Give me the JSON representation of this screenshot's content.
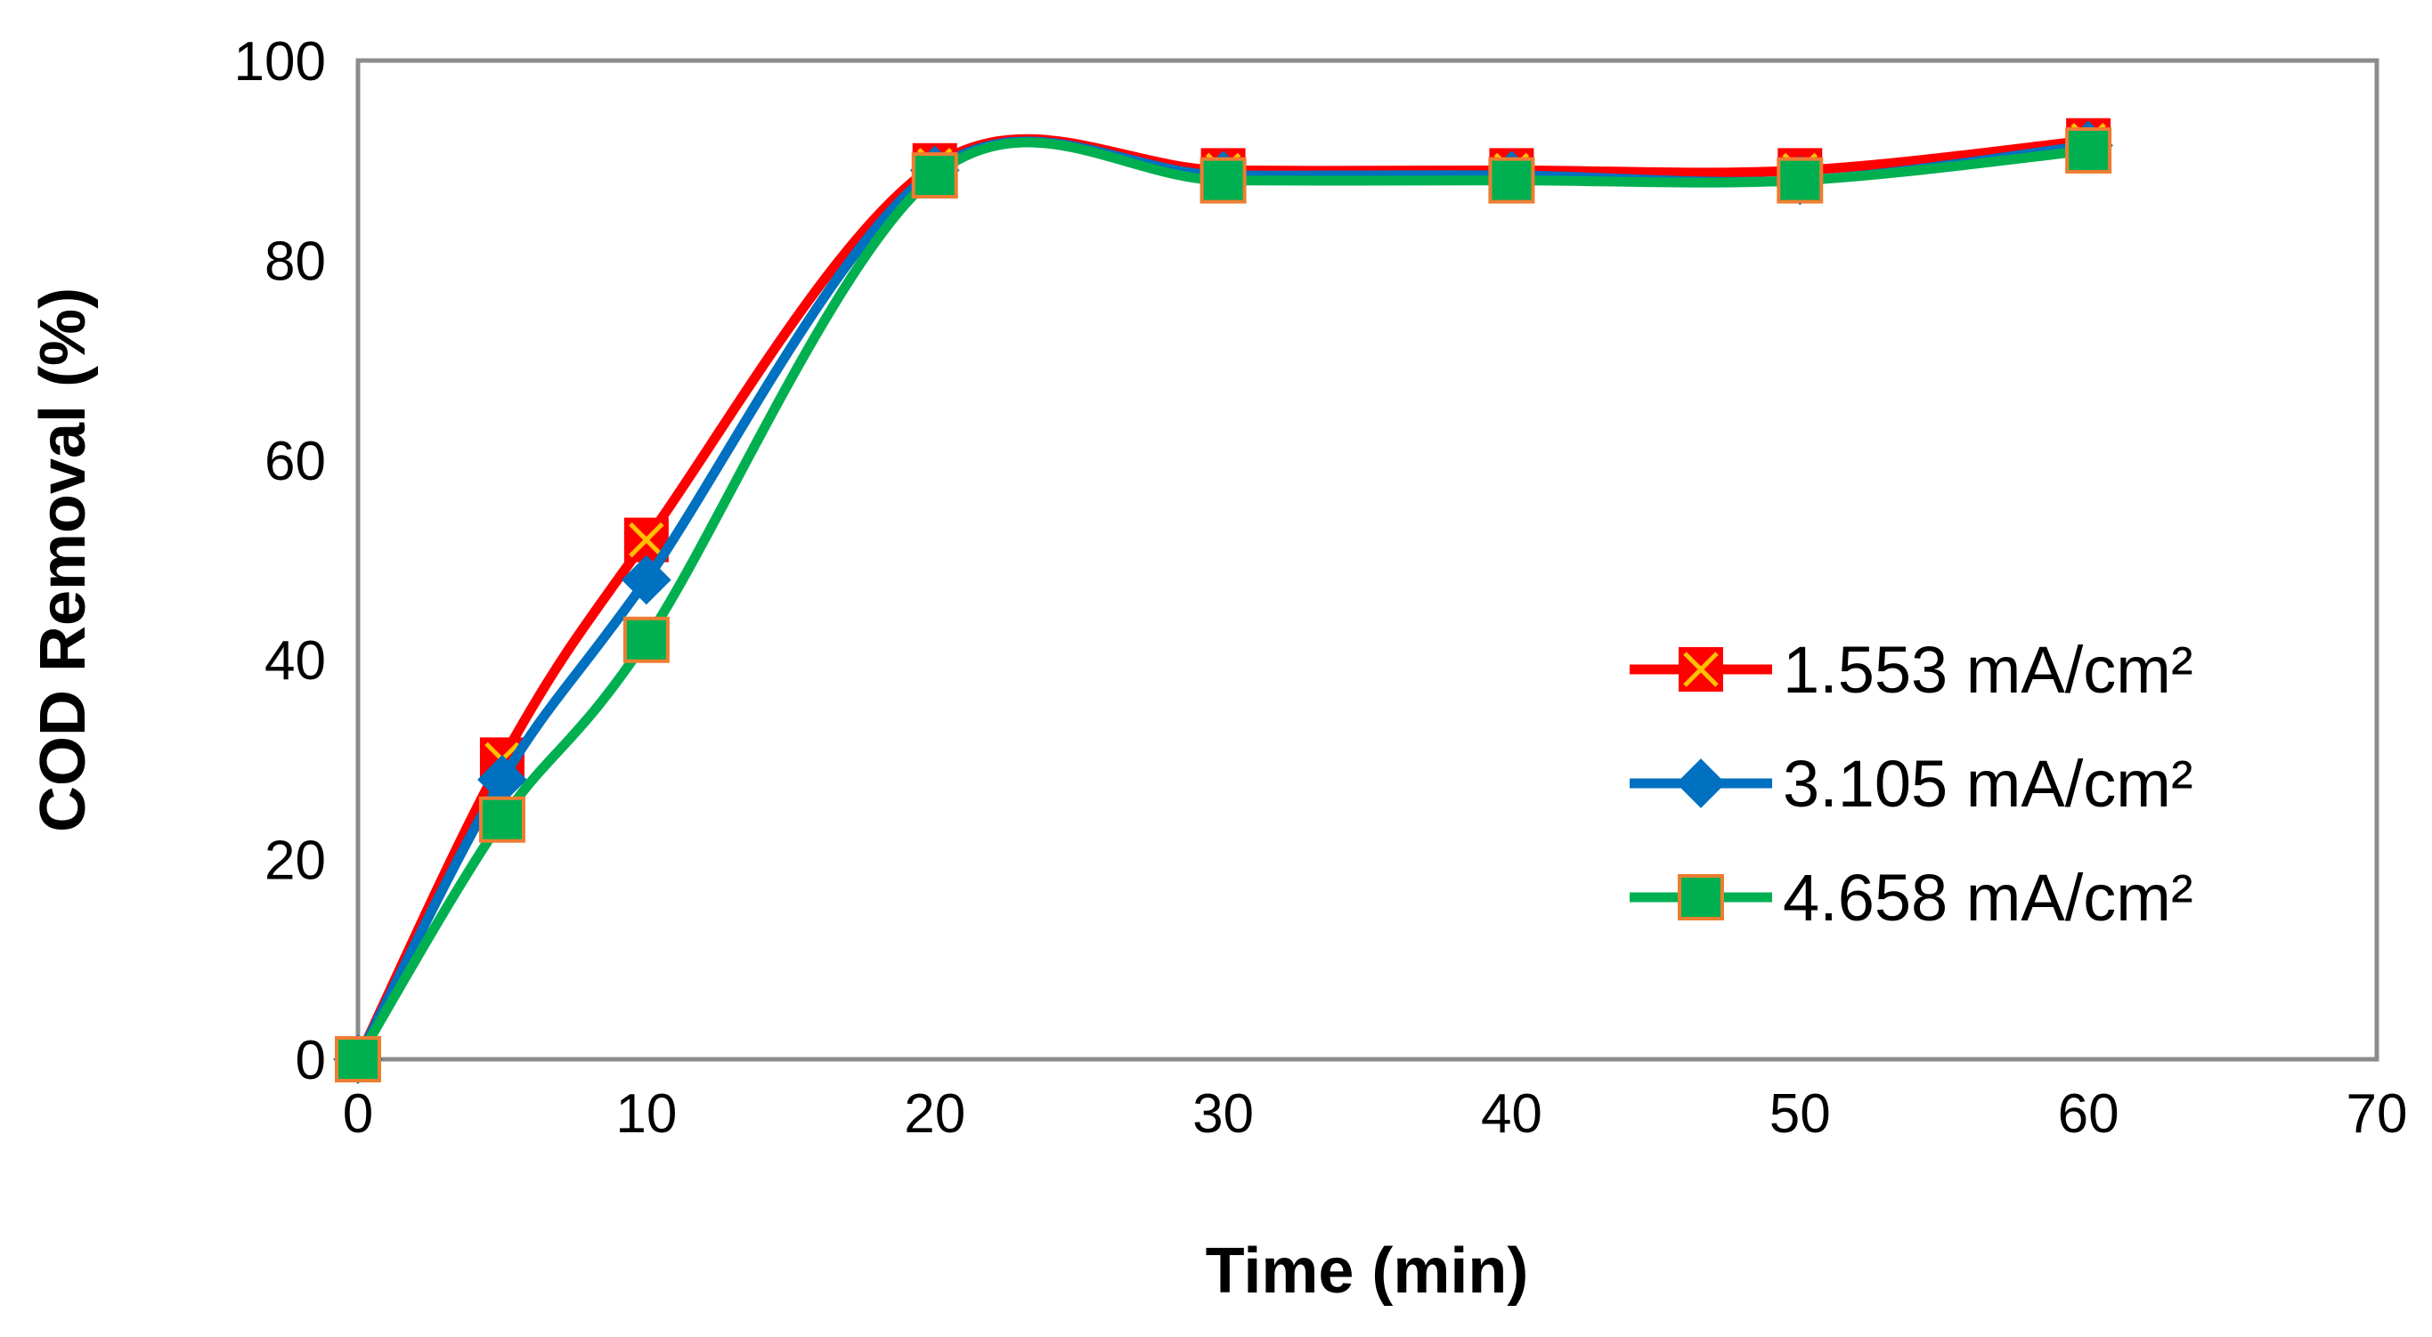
{
  "chart_data": {
    "type": "line",
    "title": "",
    "xlabel": "Time (min)",
    "ylabel": "COD Removal (%)",
    "xlim": [
      0,
      70
    ],
    "ylim": [
      0,
      100
    ],
    "xticks": [
      "0",
      "10",
      "20",
      "30",
      "40",
      "50",
      "60",
      "70"
    ],
    "yticks": [
      "0",
      "20",
      "40",
      "60",
      "80",
      "100"
    ],
    "grid": false,
    "legend_position": "right",
    "x": [
      0,
      5,
      10,
      20,
      30,
      40,
      50,
      60
    ],
    "series": [
      {
        "name": "1.553 mA/cm²",
        "values": [
          0,
          30,
          52,
          89.5,
          89,
          89,
          89,
          92
        ],
        "color": "#ff0000",
        "marker": "x-square",
        "marker_fill": "#ff0000",
        "marker_edge": "#ffc000"
      },
      {
        "name": "3.105 mA/cm²",
        "values": [
          0,
          28,
          48,
          89,
          88.5,
          88.5,
          88,
          91.5
        ],
        "color": "#0070c0",
        "marker": "diamond",
        "marker_fill": "#0070c0",
        "marker_edge": "#0070c0"
      },
      {
        "name": "4.658 mA/cm²",
        "values": [
          0,
          24,
          42,
          88.5,
          88,
          88,
          88,
          91
        ],
        "color": "#00b050",
        "marker": "square",
        "marker_fill": "#00b050",
        "marker_edge": "#ed7d31"
      }
    ]
  }
}
